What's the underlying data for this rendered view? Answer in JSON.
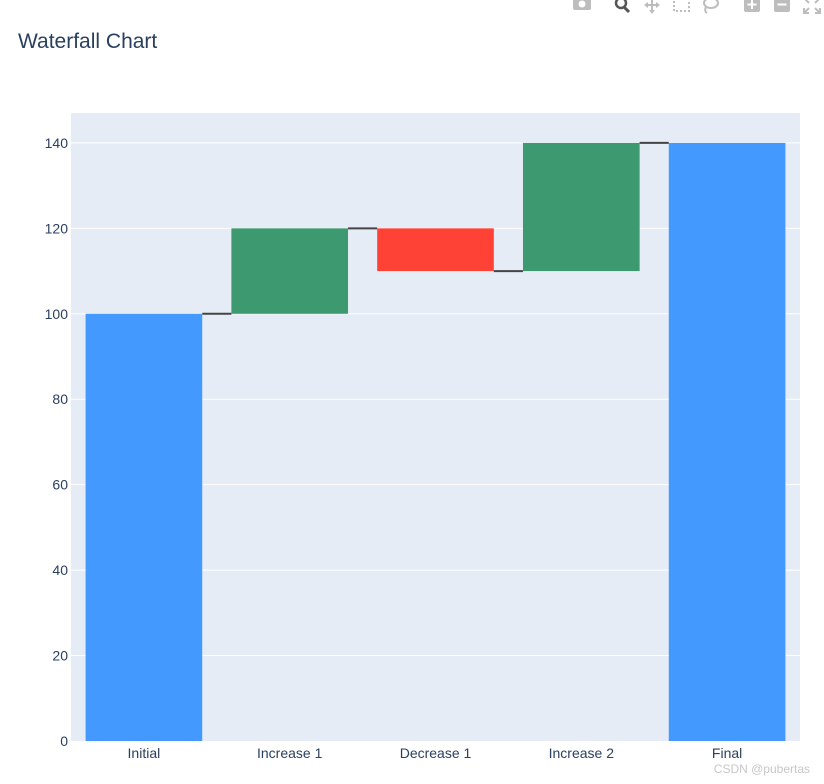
{
  "modebar": {
    "icons": [
      "camera-icon",
      "zoom-icon",
      "pan-icon",
      "box-select-icon",
      "lasso-select-icon",
      "zoom-in-icon",
      "zoom-out-icon",
      "autoscale-icon"
    ]
  },
  "chart_data": {
    "type": "waterfall",
    "title": "Waterfall Chart",
    "xlabel": "",
    "ylabel": "",
    "categories": [
      "Initial",
      "Increase 1",
      "Decrease 1",
      "Increase 2",
      "Final"
    ],
    "measures": [
      "absolute",
      "relative",
      "relative",
      "relative",
      "total"
    ],
    "values": [
      100,
      20,
      -10,
      30,
      140
    ],
    "ylim": [
      0,
      147
    ],
    "yticks": [
      0,
      20,
      40,
      60,
      80,
      100,
      120,
      140
    ],
    "grid": true,
    "colors": {
      "increasing": "#3d9970",
      "decreasing": "#ff4136",
      "totals": "#4499ff",
      "connector": "#444444",
      "plot_bg": "#e5ecf6",
      "grid": "#ffffff",
      "text": "#2a3f5f"
    }
  },
  "watermark": "CSDN @pubertas"
}
